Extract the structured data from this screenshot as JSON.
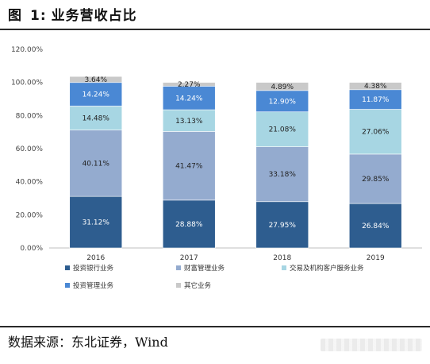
{
  "header": {
    "figure_label": "图",
    "figure_number": "1:",
    "figure_title": "业务营收占比"
  },
  "footer": {
    "source": "数据来源：东北证券，Wind"
  },
  "chart_data": {
    "type": "bar",
    "stacked": true,
    "categories": [
      "2016",
      "2017",
      "2018",
      "2019"
    ],
    "y_ticks": [
      "0.00%",
      "20.00%",
      "40.00%",
      "60.00%",
      "80.00%",
      "100.00%",
      "120.00%"
    ],
    "ylim": [
      0,
      120
    ],
    "grid": false,
    "legend_position": "bottom",
    "series": [
      {
        "name": "投资银行业务",
        "values": [
          31.12,
          28.88,
          27.95,
          26.84
        ],
        "labels": [
          "31.12%",
          "28.88%",
          "27.95%",
          "26.84%"
        ],
        "color": "#2e5d8f",
        "label_color": "#ffffff"
      },
      {
        "name": "财富管理业务",
        "values": [
          40.11,
          41.47,
          33.18,
          29.85
        ],
        "labels": [
          "40.11%",
          "41.47%",
          "33.18%",
          "29.85%"
        ],
        "color": "#94abcf",
        "label_color": "#222222"
      },
      {
        "name": "交易及机构客户服务业务",
        "values": [
          14.48,
          13.13,
          21.08,
          27.06
        ],
        "labels": [
          "14.48%",
          "13.13%",
          "21.08%",
          "27.06%"
        ],
        "color": "#a7d6e3",
        "label_color": "#222222"
      },
      {
        "name": "投资管理业务",
        "values": [
          14.24,
          14.24,
          12.9,
          11.87
        ],
        "labels": [
          "14.24%",
          "14.24%",
          "12.90%",
          "11.87%"
        ],
        "color": "#4a88d4",
        "label_color": "#ffffff"
      },
      {
        "name": "其它业务",
        "values": [
          3.64,
          2.27,
          4.89,
          4.38
        ],
        "labels": [
          "3.64%",
          "2.27%",
          "4.89%",
          "4.38%"
        ],
        "color": "#c9c9c9",
        "label_color": "#222222"
      }
    ]
  }
}
